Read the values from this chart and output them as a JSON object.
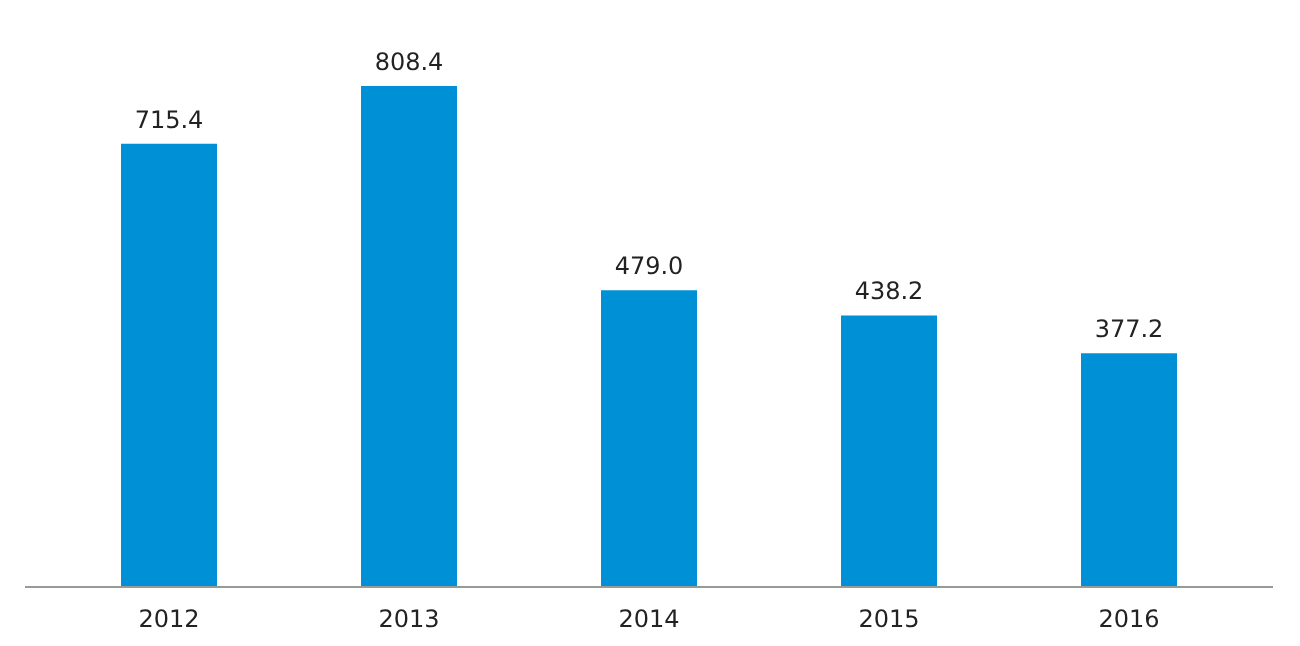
{
  "chart_data": {
    "type": "bar",
    "categories": [
      "2012",
      "2013",
      "2014",
      "2015",
      "2016"
    ],
    "values": [
      715.4,
      808.4,
      479.0,
      438.2,
      377.2
    ],
    "value_labels": [
      "715.4",
      "808.4",
      "479.0",
      "438.2",
      "377.2"
    ],
    "color": "#0090d5",
    "grid": false
  }
}
